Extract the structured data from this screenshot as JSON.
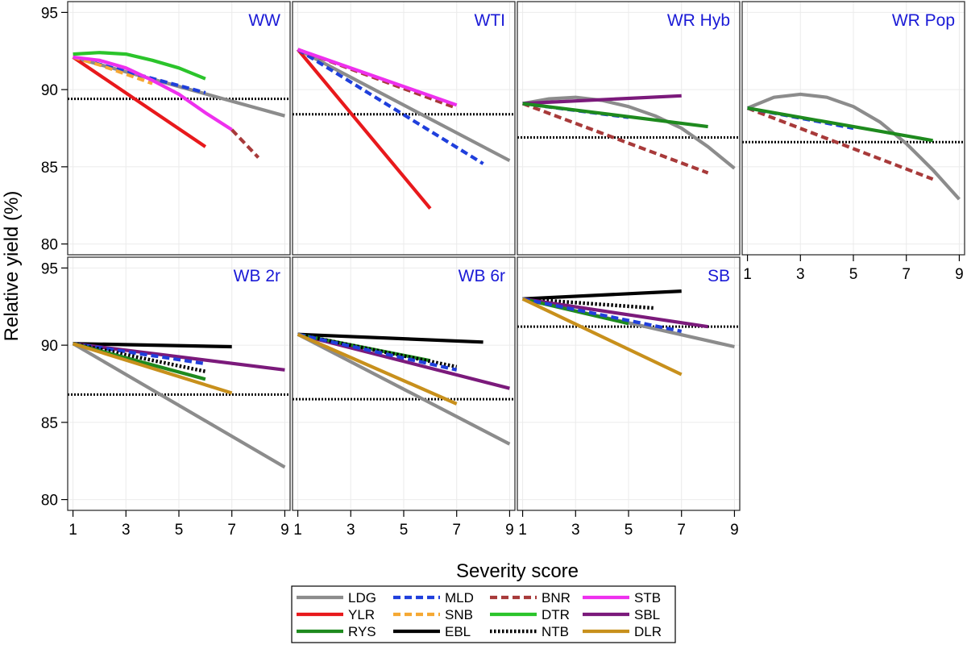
{
  "chart_data": {
    "type": "line",
    "layout": "faceted 2x4",
    "ylabel": "Relative yield (%)",
    "xlabel": "Severity score",
    "x_ticks": [
      1,
      3,
      5,
      7,
      9
    ],
    "y_ticks": [
      80,
      85,
      90,
      95
    ],
    "xlim": [
      0.8,
      9.2
    ],
    "ylim": [
      79.3,
      95.7
    ],
    "grid": true,
    "legend_position": "bottom-center",
    "colors": {
      "LDG": "#8c8c8c",
      "YLR": "#e8191c",
      "RYS": "#1e8a1e",
      "MLD": "#1f3fdc",
      "SNB": "#f5a833",
      "EBL": "#000000",
      "BNR": "#a83a3a",
      "DTR": "#2bc42b",
      "NTB": "#000000",
      "STB": "#ee30ee",
      "SBL": "#7b1a7b",
      "DLR": "#c8901c",
      "panel_title": "#1a1ad6"
    },
    "dashed": [
      "MLD",
      "SNB",
      "BNR"
    ],
    "dotted": [
      "NTB"
    ],
    "legend": [
      [
        "LDG",
        "MLD",
        "BNR",
        "STB"
      ],
      [
        "YLR",
        "SNB",
        "DTR",
        "SBL"
      ],
      [
        "RYS",
        "EBL",
        "NTB",
        "DLR"
      ]
    ],
    "panels": [
      {
        "title": "WW",
        "ref_line": 89.4,
        "series": [
          {
            "name": "LDG",
            "x": [
              1,
              5,
              9
            ],
            "y": [
              92.1,
              90.2,
              88.3
            ]
          },
          {
            "name": "YLR",
            "x": [
              1,
              6
            ],
            "y": [
              92.1,
              86.3
            ]
          },
          {
            "name": "DTR",
            "x": [
              1,
              2,
              3,
              4,
              5,
              6
            ],
            "y": [
              92.3,
              92.4,
              92.3,
              91.9,
              91.4,
              90.7
            ]
          },
          {
            "name": "MLD",
            "x": [
              1,
              6
            ],
            "y": [
              92.1,
              89.8
            ]
          },
          {
            "name": "SNB",
            "x": [
              1,
              2,
              3,
              4
            ],
            "y": [
              92.1,
              91.6,
              91.0,
              90.4
            ]
          },
          {
            "name": "STB",
            "x": [
              1,
              2,
              3,
              4,
              5,
              6,
              7
            ],
            "y": [
              92.1,
              91.9,
              91.4,
              90.6,
              89.7,
              88.5,
              87.4
            ]
          },
          {
            "name": "BNR",
            "x": [
              7,
              8
            ],
            "y": [
              87.4,
              85.6
            ]
          }
        ]
      },
      {
        "title": "WTI",
        "ref_line": 88.4,
        "series": [
          {
            "name": "LDG",
            "x": [
              1,
              9
            ],
            "y": [
              92.6,
              85.4
            ]
          },
          {
            "name": "YLR",
            "x": [
              1,
              6
            ],
            "y": [
              92.6,
              82.3
            ]
          },
          {
            "name": "MLD",
            "x": [
              1,
              8
            ],
            "y": [
              92.6,
              85.2
            ]
          },
          {
            "name": "BNR",
            "x": [
              1,
              7
            ],
            "y": [
              92.6,
              88.8
            ]
          },
          {
            "name": "STB",
            "x": [
              1,
              7
            ],
            "y": [
              92.6,
              89.0
            ]
          }
        ]
      },
      {
        "title": "WR Hyb",
        "ref_line": 86.9,
        "series": [
          {
            "name": "LDG",
            "x": [
              1,
              2,
              3,
              4,
              5,
              6,
              7,
              8,
              9
            ],
            "y": [
              89.1,
              89.4,
              89.5,
              89.3,
              88.9,
              88.3,
              87.5,
              86.3,
              84.9
            ]
          },
          {
            "name": "SBL",
            "x": [
              1,
              7
            ],
            "y": [
              89.1,
              89.6
            ]
          },
          {
            "name": "BNR",
            "x": [
              1,
              8
            ],
            "y": [
              89.1,
              84.6
            ]
          },
          {
            "name": "MLD",
            "x": [
              1,
              5
            ],
            "y": [
              89.1,
              88.2
            ]
          },
          {
            "name": "RYS",
            "x": [
              1,
              8
            ],
            "y": [
              89.1,
              87.6
            ]
          }
        ]
      },
      {
        "title": "WR Pop",
        "ref_line": 86.6,
        "series": [
          {
            "name": "LDG",
            "x": [
              1,
              2,
              3,
              4,
              5,
              6,
              7,
              8,
              9
            ],
            "y": [
              88.8,
              89.5,
              89.7,
              89.5,
              88.9,
              87.9,
              86.5,
              84.8,
              82.9
            ]
          },
          {
            "name": "BNR",
            "x": [
              1,
              8
            ],
            "y": [
              88.8,
              84.2
            ]
          },
          {
            "name": "MLD",
            "x": [
              1,
              5
            ],
            "y": [
              88.8,
              87.5
            ]
          },
          {
            "name": "RYS",
            "x": [
              1,
              8
            ],
            "y": [
              88.8,
              86.7
            ]
          }
        ]
      },
      {
        "title": "WB 2r",
        "ref_line": 86.8,
        "series": [
          {
            "name": "LDG",
            "x": [
              1,
              9
            ],
            "y": [
              90.1,
              82.1
            ]
          },
          {
            "name": "EBL",
            "x": [
              1,
              7
            ],
            "y": [
              90.1,
              89.9
            ]
          },
          {
            "name": "SBL",
            "x": [
              1,
              9
            ],
            "y": [
              90.1,
              88.4
            ]
          },
          {
            "name": "MLD",
            "x": [
              1,
              6
            ],
            "y": [
              90.1,
              88.8
            ]
          },
          {
            "name": "NTB",
            "x": [
              1,
              6
            ],
            "y": [
              90.1,
              88.3
            ]
          },
          {
            "name": "RYS",
            "x": [
              1,
              6
            ],
            "y": [
              90.1,
              87.8
            ]
          },
          {
            "name": "DLR",
            "x": [
              1,
              7
            ],
            "y": [
              90.1,
              86.9
            ]
          }
        ]
      },
      {
        "title": "WB 6r",
        "ref_line": 86.5,
        "series": [
          {
            "name": "LDG",
            "x": [
              1,
              9
            ],
            "y": [
              90.7,
              83.6
            ]
          },
          {
            "name": "EBL",
            "x": [
              1,
              8
            ],
            "y": [
              90.7,
              90.2
            ]
          },
          {
            "name": "SBL",
            "x": [
              1,
              9
            ],
            "y": [
              90.7,
              87.2
            ]
          },
          {
            "name": "RYS",
            "x": [
              1,
              6
            ],
            "y": [
              90.7,
              89.0
            ]
          },
          {
            "name": "NTB",
            "x": [
              1,
              7
            ],
            "y": [
              90.7,
              88.6
            ]
          },
          {
            "name": "MLD",
            "x": [
              1,
              7
            ],
            "y": [
              90.7,
              88.4
            ]
          },
          {
            "name": "DLR",
            "x": [
              1,
              7
            ],
            "y": [
              90.7,
              86.2
            ]
          }
        ]
      },
      {
        "title": "SB",
        "ref_line": 91.2,
        "series": [
          {
            "name": "LDG",
            "x": [
              1,
              9
            ],
            "y": [
              93.0,
              89.9
            ]
          },
          {
            "name": "EBL",
            "x": [
              1,
              7
            ],
            "y": [
              93.0,
              93.5
            ]
          },
          {
            "name": "NTB",
            "x": [
              1,
              6
            ],
            "y": [
              93.0,
              92.4
            ]
          },
          {
            "name": "SBL",
            "x": [
              1,
              8
            ],
            "y": [
              93.0,
              91.2
            ]
          },
          {
            "name": "RYS",
            "x": [
              1,
              5
            ],
            "y": [
              93.0,
              91.4
            ]
          },
          {
            "name": "MLD",
            "x": [
              1,
              7
            ],
            "y": [
              93.0,
              90.9
            ]
          },
          {
            "name": "DLR",
            "x": [
              1,
              7
            ],
            "y": [
              93.0,
              88.1
            ]
          }
        ]
      }
    ]
  }
}
